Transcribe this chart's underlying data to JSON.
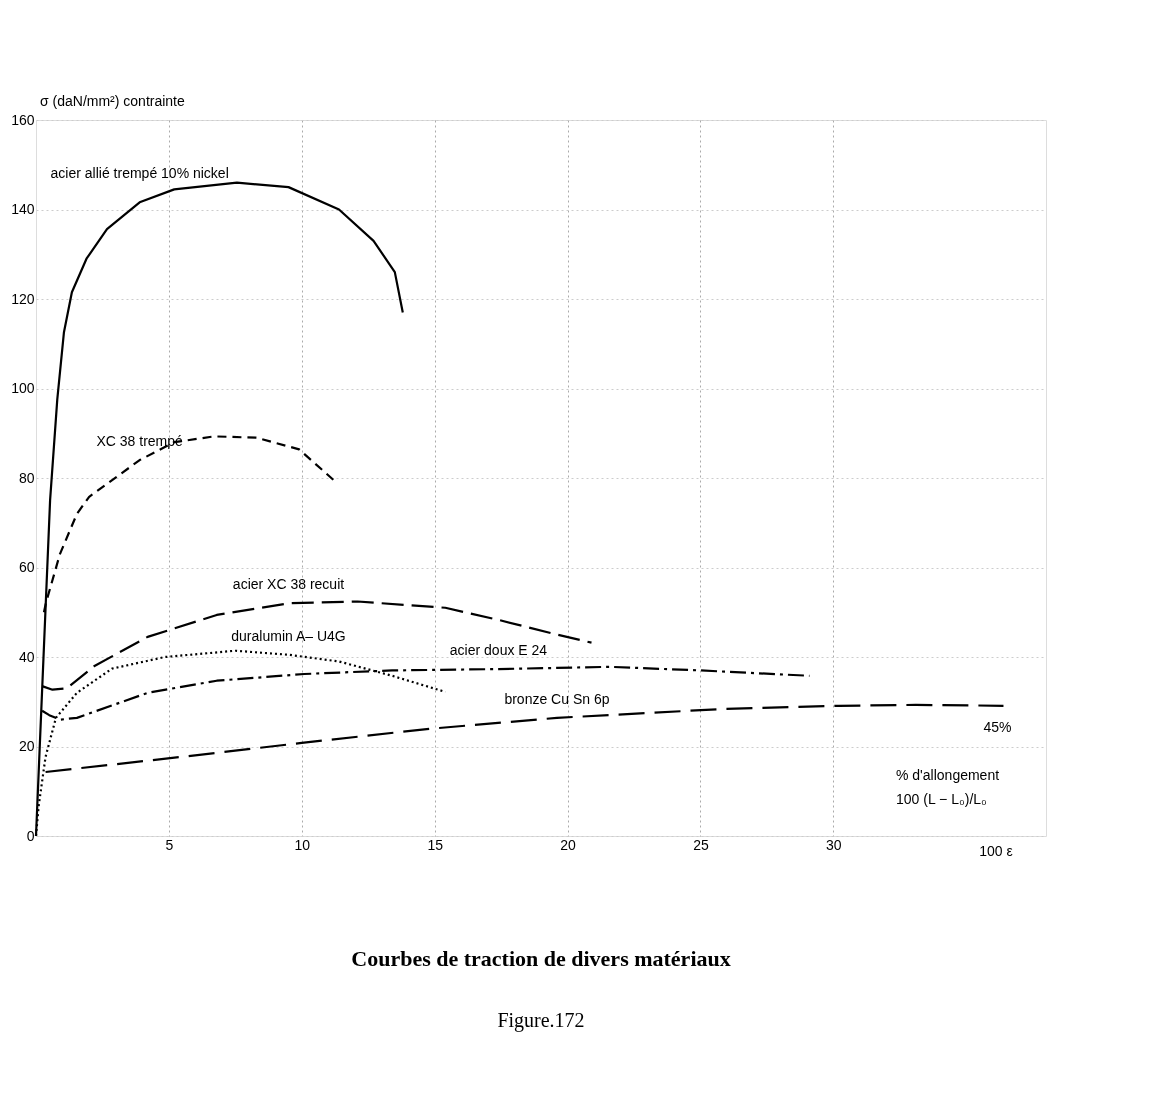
{
  "chart_data": {
    "type": "line",
    "title": "Courbes de traction de divers matériaux",
    "xlabel": "100 ε",
    "ylabel": "σ (daN/mm²) contrainte",
    "xlim": [
      0,
      38
    ],
    "ylim": [
      0,
      160
    ],
    "xticks": [
      5,
      10,
      15,
      20,
      25,
      30
    ],
    "yticks": [
      0,
      20,
      40,
      60,
      80,
      100,
      120,
      140,
      160
    ],
    "grid": true,
    "annotations": [
      {
        "text": "45%",
        "x": 36.4,
        "y": 29.1
      },
      "% d'allongement",
      "100 (L − L₀)/L₀",
      "Figure.172"
    ],
    "series": [
      {
        "name": "acier allié trempé 10% nickel",
        "color": "#000000",
        "line_style": "solid",
        "x": [
          0,
          0.53,
          0.8,
          1.05,
          1.35,
          1.9,
          2.67,
          3.9,
          5.2,
          7.56,
          9.5,
          11.4,
          12.7,
          13.5,
          13.8
        ],
        "values": [
          0,
          75,
          97.5,
          112.5,
          121.5,
          129,
          135.6,
          141.6,
          144.5,
          146,
          145,
          140,
          133,
          126,
          117
        ]
      },
      {
        "name": "XC 38 trempé",
        "color": "#000000",
        "line_style": "dashed",
        "x": [
          0.3,
          0.37,
          0.9,
          1.54,
          2.0,
          3.9,
          5.2,
          6.7,
          8.3,
          9.9,
          11.3
        ],
        "values": [
          50,
          52,
          63,
          72,
          75.8,
          84,
          88,
          89.3,
          89,
          86.4,
          79
        ]
      },
      {
        "name": "acier XC 38 recuit",
        "color": "#000000",
        "line_style": "dashed",
        "x": [
          0.23,
          0.62,
          1.16,
          2.2,
          4.2,
          6.8,
          9.5,
          12.1,
          15.4,
          17.4,
          19.6,
          20.9
        ],
        "values": [
          33.5,
          32.7,
          33,
          38,
          44.5,
          49.4,
          52,
          52.4,
          51,
          48.3,
          45,
          43.2
        ]
      },
      {
        "name": "duralumin A– U4G",
        "color": "#000000",
        "line_style": "dotted",
        "x": [
          0,
          0.1,
          0.36,
          0.75,
          1.54,
          2.86,
          4.85,
          7.5,
          9.5,
          11.4,
          13.4,
          15.4
        ],
        "values": [
          0,
          6.7,
          17.7,
          26.4,
          32,
          37.4,
          40,
          41.4,
          40.5,
          39,
          35.8,
          32.2
        ]
      },
      {
        "name": "acier doux E 24",
        "color": "#000000",
        "line_style": "dashed",
        "x": [
          0.23,
          0.5,
          0.9,
          1.54,
          4.2,
          6.8,
          10.1,
          13.4,
          17.4,
          21.6,
          25,
          29.1
        ],
        "values": [
          28,
          27,
          26,
          26.4,
          32,
          34.7,
          36.2,
          37,
          37.3,
          37.8,
          37,
          35.8
        ]
      },
      {
        "name": "bronze Cu Sn 6p",
        "color": "#000000",
        "line_style": "dashed",
        "x": [
          0.36,
          5.5,
          10,
          14.7,
          19.6,
          25.9,
          30.2,
          33.1,
          36.4
        ],
        "values": [
          14.3,
          17.7,
          20.8,
          23.9,
          26.4,
          28.4,
          29.1,
          29.3,
          29.1
        ]
      }
    ]
  }
}
